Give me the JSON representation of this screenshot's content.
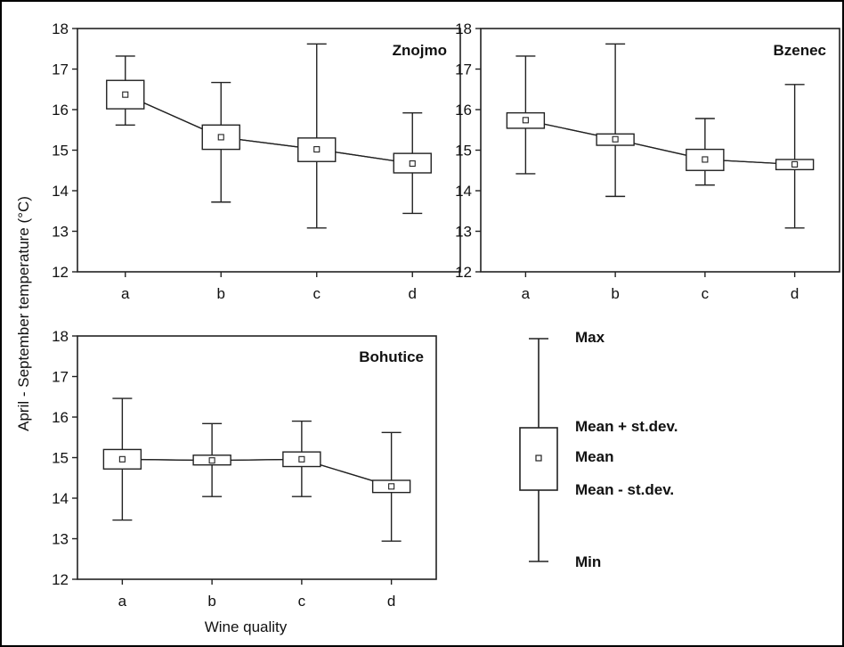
{
  "chart_data": [
    {
      "type": "box",
      "title": "Znojmo",
      "categories": [
        "a",
        "b",
        "c",
        "d"
      ],
      "ylim": [
        12,
        18
      ],
      "yticks": [
        12,
        13,
        14,
        15,
        16,
        17,
        18
      ],
      "series": [
        {
          "values": [
            {
              "min": 15.62,
              "lower": 16.02,
              "mean": 16.37,
              "upper": 16.72,
              "max": 17.32
            },
            {
              "min": 13.72,
              "lower": 15.02,
              "mean": 15.32,
              "upper": 15.62,
              "max": 16.67
            },
            {
              "min": 13.08,
              "lower": 14.72,
              "mean": 15.02,
              "upper": 15.3,
              "max": 17.62
            },
            {
              "min": 13.44,
              "lower": 14.44,
              "mean": 14.67,
              "upper": 14.92,
              "max": 15.92
            }
          ]
        }
      ]
    },
    {
      "type": "box",
      "title": "Bzenec",
      "categories": [
        "a",
        "b",
        "c",
        "d"
      ],
      "ylim": [
        12,
        18
      ],
      "yticks": [
        12,
        13,
        14,
        15,
        16,
        17,
        18
      ],
      "series": [
        {
          "values": [
            {
              "min": 14.42,
              "lower": 15.54,
              "mean": 15.74,
              "upper": 15.92,
              "max": 17.32
            },
            {
              "min": 13.86,
              "lower": 15.12,
              "mean": 15.27,
              "upper": 15.4,
              "max": 17.62
            },
            {
              "min": 14.14,
              "lower": 14.5,
              "mean": 14.77,
              "upper": 15.02,
              "max": 15.78
            },
            {
              "min": 13.08,
              "lower": 14.52,
              "mean": 14.65,
              "upper": 14.77,
              "max": 16.62
            }
          ]
        }
      ]
    },
    {
      "type": "box",
      "title": "Bohutice",
      "categories": [
        "a",
        "b",
        "c",
        "d"
      ],
      "ylim": [
        12,
        18
      ],
      "yticks": [
        12,
        13,
        14,
        15,
        16,
        17,
        18
      ],
      "series": [
        {
          "values": [
            {
              "min": 13.46,
              "lower": 14.72,
              "mean": 14.96,
              "upper": 15.2,
              "max": 16.46
            },
            {
              "min": 14.04,
              "lower": 14.82,
              "mean": 14.93,
              "upper": 15.06,
              "max": 15.84
            },
            {
              "min": 14.04,
              "lower": 14.78,
              "mean": 14.96,
              "upper": 15.14,
              "max": 15.9
            },
            {
              "min": 12.94,
              "lower": 14.14,
              "mean": 14.29,
              "upper": 14.44,
              "max": 15.62
            }
          ]
        }
      ]
    }
  ],
  "axis": {
    "ylabel": "April - September temperature (°C)",
    "xlabel": "Wine quality"
  },
  "legend": {
    "max": "Max",
    "upper": "Mean + st.dev.",
    "mean": "Mean",
    "lower": "Mean - st.dev.",
    "min": "Min"
  }
}
